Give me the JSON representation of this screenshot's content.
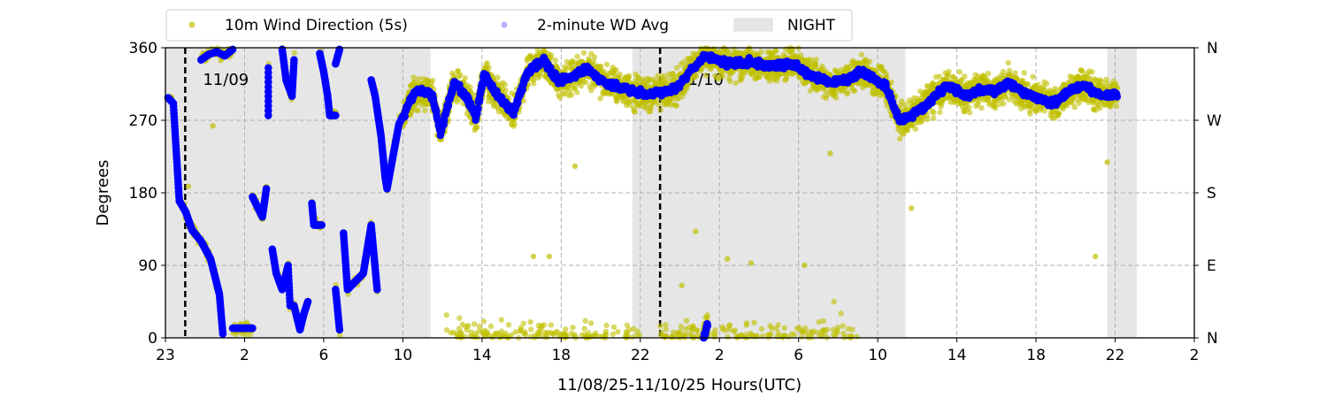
{
  "chart_data": {
    "type": "scatter",
    "title": "",
    "xlabel": "11/08/25-11/10/25  Hours(UTC)",
    "ylabel": "Degrees",
    "xlim": [
      -2,
      50
    ],
    "ylim": [
      0,
      360
    ],
    "x_units": "hours from 00:00 UTC 11/09/25",
    "xticks": [
      -2,
      2,
      6,
      10,
      14,
      18,
      22,
      26,
      30,
      34,
      38,
      42,
      46,
      50
    ],
    "xtick_labels": [
      "23",
      "2",
      "6",
      "10",
      "14",
      "18",
      "22",
      "2",
      "6",
      "10",
      "14",
      "18",
      "22",
      "2"
    ],
    "yticks": [
      0,
      90,
      180,
      270,
      360
    ],
    "ytick_labels": [
      "0",
      "90",
      "180",
      "270",
      "360"
    ],
    "right_ytick_labels": [
      "N",
      "E",
      "S",
      "W",
      "N"
    ],
    "grid": true,
    "legend": {
      "placement": "top",
      "items": [
        {
          "label": "10m Wind Direction (5s)",
          "color": "#bfbf00"
        },
        {
          "label": "2-minute WD Avg",
          "color": "#0000ff"
        },
        {
          "label": "NIGHT",
          "color": "#e6e6e6"
        }
      ]
    },
    "date_markers": [
      {
        "x": -1,
        "label": "11/09"
      },
      {
        "x": 23,
        "label": "11/10"
      }
    ],
    "night_periods": [
      [
        -2,
        11.4
      ],
      [
        21.6,
        35.4
      ],
      [
        45.6,
        47.1
      ]
    ],
    "series": [
      {
        "name": "2-minute WD Avg",
        "color": "#0000ff",
        "segments": [
          [
            [
              -1.87,
              298
            ],
            [
              -1.6,
              291
            ],
            [
              -1.42,
              218
            ],
            [
              -1.3,
              170
            ],
            [
              -0.97,
              156
            ],
            [
              -0.66,
              134
            ],
            [
              -0.2,
              120
            ],
            [
              0.28,
              98
            ],
            [
              0.73,
              54
            ],
            [
              0.9,
              5
            ]
          ],
          [
            [
              -0.2,
              345
            ],
            [
              0.2,
              352
            ],
            [
              0.6,
              355
            ],
            [
              1.0,
              350
            ],
            [
              1.4,
              358
            ]
          ],
          [
            [
              1.4,
              12
            ],
            [
              2.4,
              12
            ]
          ],
          [
            [
              2.4,
              175
            ],
            [
              2.7,
              160
            ],
            [
              2.9,
              150
            ],
            [
              3.1,
              185
            ]
          ],
          [
            [
              3.2,
              335
            ],
            [
              3.2,
              276
            ]
          ],
          [
            [
              3.4,
              110
            ],
            [
              3.6,
              80
            ],
            [
              3.9,
              60
            ],
            [
              4.2,
              90
            ],
            [
              4.3,
              40
            ]
          ],
          [
            [
              3.9,
              358
            ],
            [
              4.1,
              320
            ],
            [
              4.4,
              300
            ],
            [
              4.5,
              345
            ]
          ],
          [
            [
              4.5,
              40
            ],
            [
              4.8,
              10
            ],
            [
              5.0,
              30
            ],
            [
              5.2,
              45
            ]
          ],
          [
            [
              5.4,
              167
            ],
            [
              5.5,
              140
            ],
            [
              5.9,
              140
            ]
          ],
          [
            [
              5.8,
              353
            ],
            [
              6.0,
              330
            ],
            [
              6.2,
              300
            ],
            [
              6.3,
              276
            ],
            [
              6.6,
              276
            ]
          ],
          [
            [
              6.6,
              340
            ],
            [
              6.8,
              358
            ]
          ],
          [
            [
              6.6,
              60
            ],
            [
              6.8,
              10
            ]
          ],
          [
            [
              7.0,
              130
            ],
            [
              7.2,
              60
            ],
            [
              7.6,
              70
            ],
            [
              8.0,
              80
            ],
            [
              8.2,
              110
            ],
            [
              8.4,
              140
            ],
            [
              8.7,
              60
            ]
          ],
          [
            [
              8.4,
              320
            ],
            [
              8.6,
              300
            ],
            [
              8.9,
              250
            ],
            [
              9.1,
              200
            ],
            [
              9.2,
              185
            ],
            [
              9.5,
              225
            ],
            [
              9.8,
              265
            ],
            [
              10.2,
              285
            ],
            [
              10.6,
              305
            ],
            [
              11.1,
              306
            ],
            [
              11.5,
              300
            ],
            [
              11.9,
              255
            ],
            [
              12.6,
              317
            ],
            [
              13.2,
              300
            ],
            [
              13.7,
              273
            ],
            [
              14.1,
              328
            ],
            [
              14.8,
              300
            ],
            [
              15.6,
              280
            ],
            [
              16.3,
              330
            ],
            [
              17.1,
              346
            ],
            [
              17.8,
              320
            ],
            [
              18.6,
              324
            ],
            [
              19.3,
              335
            ],
            [
              20.0,
              320
            ],
            [
              21.0,
              310
            ],
            [
              22.3,
              302
            ],
            [
              23.0,
              305
            ],
            [
              23.8,
              309
            ],
            [
              24.5,
              330
            ],
            [
              25.3,
              350
            ],
            [
              26.4,
              340
            ],
            [
              27.5,
              342
            ],
            [
              28.6,
              338
            ],
            [
              29.8,
              339
            ],
            [
              30.7,
              325
            ],
            [
              31.7,
              317
            ],
            [
              32.4,
              320
            ],
            [
              33.2,
              331
            ],
            [
              34.4,
              313
            ],
            [
              35.1,
              269
            ],
            [
              35.6,
              275
            ],
            [
              36.2,
              284
            ],
            [
              36.9,
              300
            ],
            [
              37.6,
              313
            ],
            [
              38.4,
              300
            ],
            [
              39.2,
              309
            ],
            [
              39.9,
              305
            ],
            [
              40.6,
              317
            ],
            [
              41.7,
              300
            ],
            [
              42.9,
              291
            ],
            [
              43.6,
              305
            ],
            [
              44.4,
              313
            ],
            [
              45.3,
              300
            ],
            [
              46.1,
              302
            ]
          ],
          [
            [
              25.2,
              0
            ],
            [
              25.4,
              15
            ]
          ]
        ]
      },
      {
        "name": "10m Wind Direction (5s)",
        "color": "#bfbf00",
        "spread_deg": 28,
        "near_north_ranges": [
          [
            12,
            22
          ],
          [
            23,
            33
          ]
        ],
        "outliers": [
          [
            16.6,
            101
          ],
          [
            17.4,
            101
          ],
          [
            18.7,
            213
          ],
          [
            31.6,
            229
          ],
          [
            35.7,
            161
          ],
          [
            45.0,
            101
          ],
          [
            24.8,
            132
          ],
          [
            30.3,
            90
          ],
          [
            26.4,
            98
          ],
          [
            27.6,
            93
          ],
          [
            24.1,
            65
          ],
          [
            45.6,
            218
          ],
          [
            13.3,
            15
          ],
          [
            -0.84,
            188
          ],
          [
            0.4,
            263
          ]
        ]
      }
    ]
  }
}
